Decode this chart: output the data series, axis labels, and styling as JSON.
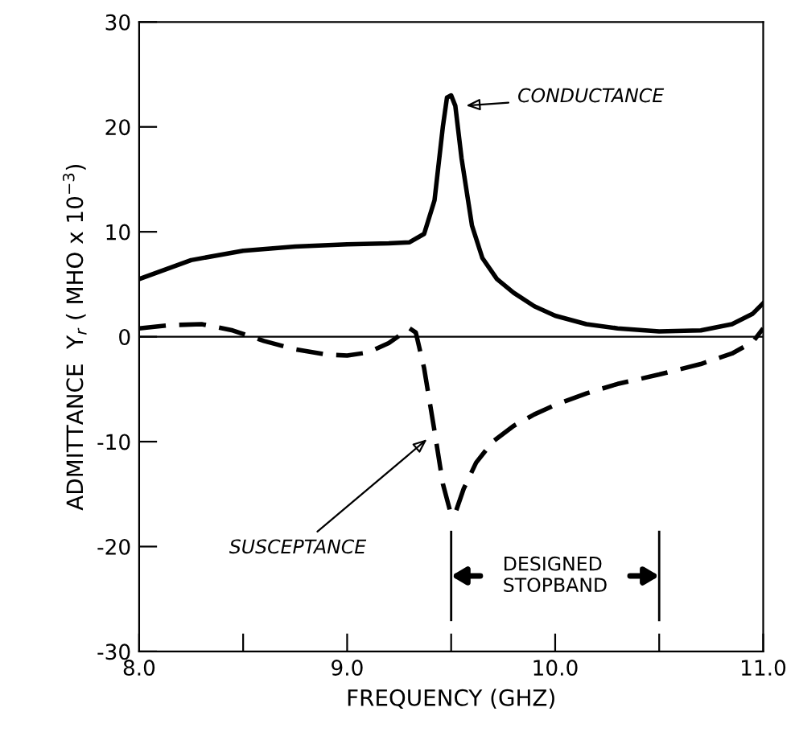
{
  "chart_data": {
    "type": "line",
    "xlabel": "FREQUENCY (GHZ)",
    "ylabel": "ADMITTANCE  Y$_{r}$ ( MHO x 10$^{−3}$)",
    "xlim": [
      8.0,
      11.0
    ],
    "ylim": [
      -30,
      30
    ],
    "xticks": [
      {
        "value": 8.0,
        "label": "8.0"
      },
      {
        "value": 8.5,
        "label": null
      },
      {
        "value": 9.0,
        "label": "9.0"
      },
      {
        "value": 9.5,
        "label": null
      },
      {
        "value": 10.0,
        "label": "10.0"
      },
      {
        "value": 10.5,
        "label": null
      },
      {
        "value": 11.0,
        "label": "11.0"
      }
    ],
    "yticks": [
      -30,
      -20,
      -10,
      0,
      10,
      20,
      30
    ],
    "series": [
      {
        "color": "#000000",
        "line_style": "solid",
        "x": [
          8.0,
          8.25,
          8.5,
          8.75,
          9.0,
          9.2,
          9.3,
          9.37,
          9.42,
          9.46,
          9.48,
          9.5,
          9.52,
          9.55,
          9.6,
          9.65,
          9.72,
          9.8,
          9.9,
          10.0,
          10.15,
          10.3,
          10.5,
          10.7,
          10.85,
          10.95,
          11.0
        ],
        "values": [
          5.5,
          7.3,
          8.2,
          8.6,
          8.8,
          8.9,
          9.0,
          9.8,
          13,
          20,
          22.8,
          23,
          22,
          17,
          10.6,
          7.5,
          5.5,
          4.2,
          2.9,
          2.0,
          1.2,
          0.8,
          0.5,
          0.6,
          1.2,
          2.2,
          3.2
        ]
      },
      {
        "color": "#000000",
        "line_style": "dashed",
        "x": [
          8.0,
          8.15,
          8.3,
          8.45,
          8.6,
          8.75,
          8.9,
          9.0,
          9.1,
          9.2,
          9.3,
          9.33,
          9.37,
          9.42,
          9.46,
          9.5,
          9.52,
          9.56,
          9.62,
          9.7,
          9.8,
          9.9,
          10.0,
          10.15,
          10.3,
          10.5,
          10.7,
          10.85,
          10.95,
          11.0
        ],
        "values": [
          0.8,
          1.1,
          1.2,
          0.6,
          -0.4,
          -1.2,
          -1.7,
          -1.8,
          -1.5,
          -0.6,
          0.8,
          0.4,
          -3,
          -9,
          -14,
          -17,
          -16.8,
          -14.5,
          -12,
          -10,
          -8.5,
          -7.4,
          -6.5,
          -5.4,
          -4.5,
          -3.6,
          -2.6,
          -1.6,
          -0.5,
          0.8
        ]
      }
    ],
    "ref_lines": [
      {
        "axis": "y",
        "value": 0,
        "color": "#000000"
      },
      {
        "axis": "x",
        "value": 9.5,
        "color": "#000000"
      },
      {
        "axis": "x",
        "value": 10.5,
        "color": "#000000"
      }
    ],
    "annotations": [
      {
        "text": "CONDUCTANCE",
        "x": 9.55,
        "y": 22
      },
      {
        "text": "SUSCEPTANCE",
        "x": 9.4,
        "y": -9.5
      },
      "DESIGNED\nSTOPBAND"
    ],
    "grid": false,
    "legend": false
  }
}
